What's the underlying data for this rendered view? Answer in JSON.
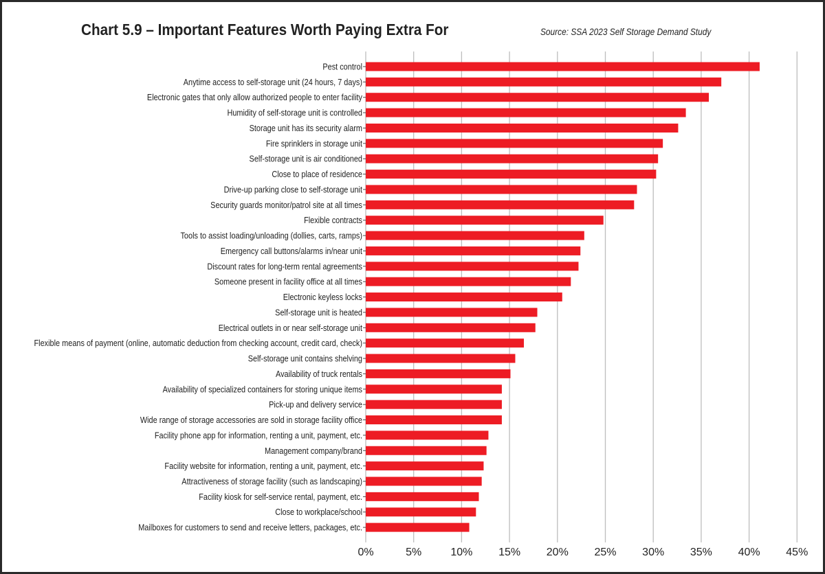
{
  "chart_data": {
    "type": "bar",
    "orientation": "horizontal",
    "title": "Chart 5.9 – Important Features Worth Paying Extra For",
    "subtitle": "Source: SSA 2023 Self Storage Demand Study",
    "xlabel": "",
    "ylabel": "",
    "xlim": [
      0,
      45
    ],
    "x_ticks": [
      "0%",
      "5%",
      "10%",
      "15%",
      "20%",
      "25%",
      "30%",
      "35%",
      "40%",
      "45%"
    ],
    "grid": true,
    "bar_color": "#ED1C24",
    "grid_color": "#BDBDBD",
    "categories": [
      "Pest control",
      "Anytime access to self-storage unit (24 hours, 7 days)",
      "Electronic gates that only allow authorized people to enter facility",
      "Humidity of self-storage unit is controlled",
      "Storage unit has its security alarm",
      "Fire sprinklers in storage unit",
      "Self-storage unit is air conditioned",
      "Close to place of residence",
      "Drive-up parking close to self-storage unit",
      "Security guards monitor/patrol site at all times",
      "Flexible contracts",
      "Tools to assist loading/unloading (dollies, carts, ramps)",
      "Emergency call buttons/alarms in/near unit",
      "Discount rates for long-term rental agreements",
      "Someone present in facility office at all times",
      "Electronic keyless locks",
      "Self-storage unit is heated",
      "Electrical outlets in or near self-storage unit",
      "Flexible means of payment (online, automatic deduction from checking account, credit card, check)",
      "Self-storage unit contains shelving",
      "Availability of truck rentals",
      "Availability of specialized containers for storing unique items",
      "Pick-up and delivery service",
      "Wide range of storage accessories are sold in storage facility office",
      "Facility phone app for information, renting a unit, payment, etc.",
      "Management company/brand",
      "Facility website for information, renting a unit, payment, etc.",
      "Attractiveness of storage facility (such as landscaping)",
      "Facility kiosk for self-service rental, payment, etc.",
      "Close to workplace/school",
      "Mailboxes for customers to send and receive letters, packages, etc."
    ],
    "values": [
      41.1,
      37.1,
      35.8,
      33.4,
      32.6,
      31.0,
      30.5,
      30.3,
      28.3,
      28.0,
      24.8,
      22.8,
      22.4,
      22.2,
      21.4,
      20.5,
      17.9,
      17.7,
      16.5,
      15.6,
      15.1,
      14.2,
      14.2,
      14.2,
      12.8,
      12.6,
      12.3,
      12.1,
      11.8,
      11.5,
      10.8
    ]
  }
}
